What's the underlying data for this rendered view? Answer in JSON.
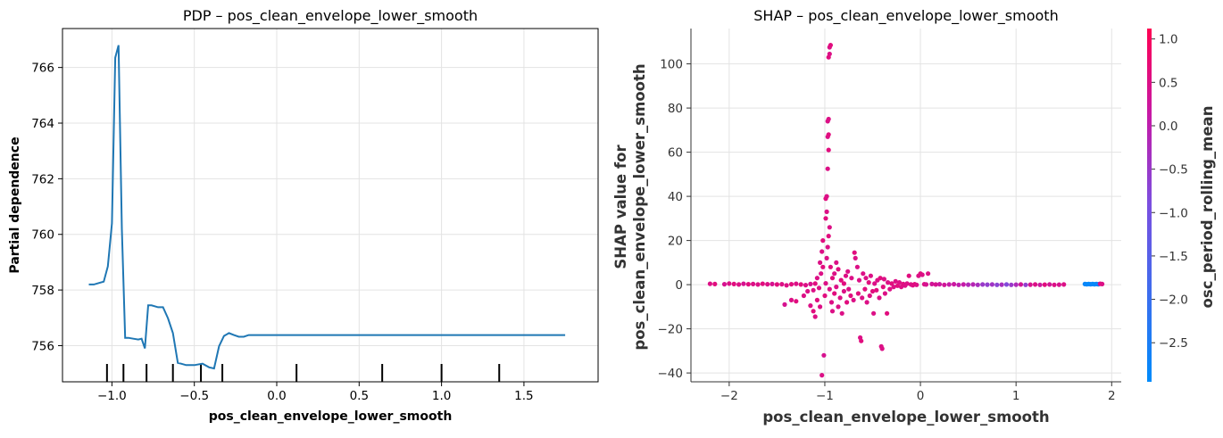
{
  "colors": {
    "pdp_line": "#1f77b4",
    "shap_low": "#008bfb",
    "shap_high": "#ff0052",
    "rug": "#000000"
  },
  "chart_data": [
    {
      "type": "line",
      "title": "PDP – pos_clean_envelope_lower_smooth",
      "xlabel": "pos_clean_envelope_lower_smooth",
      "ylabel": "Partial dependence",
      "xlim": [
        -1.3,
        1.95
      ],
      "ylim": [
        754.7,
        767.4
      ],
      "grid": true,
      "x_ticks": [
        -1.0,
        -0.5,
        0.0,
        0.5,
        1.0,
        1.5
      ],
      "x_tick_labels": [
        "−1.0",
        "−0.5",
        "0.0",
        "0.5",
        "1.0",
        "1.5"
      ],
      "y_ticks": [
        756,
        758,
        760,
        762,
        764,
        766
      ],
      "y_tick_labels": [
        "756",
        "758",
        "760",
        "762",
        "764",
        "766"
      ],
      "series": [
        {
          "x": [
            -1.14,
            -1.11,
            -1.08,
            -1.05,
            -1.025,
            -1.0,
            -0.98,
            -0.96,
            -0.94,
            -0.92,
            -0.9,
            -0.87,
            -0.84,
            -0.82,
            -0.8,
            -0.78,
            -0.76,
            -0.72,
            -0.69,
            -0.66,
            -0.63,
            -0.6,
            -0.58,
            -0.55,
            -0.5,
            -0.45,
            -0.41,
            -0.38,
            -0.35,
            -0.32,
            -0.29,
            -0.26,
            -0.23,
            -0.2,
            -0.17,
            -0.14,
            1.75
          ],
          "y": [
            758.2,
            758.2,
            758.25,
            758.3,
            758.85,
            760.4,
            766.35,
            766.8,
            760.2,
            756.28,
            756.28,
            756.25,
            756.22,
            756.25,
            755.9,
            757.45,
            757.45,
            757.38,
            757.38,
            756.98,
            756.45,
            755.38,
            755.35,
            755.3,
            755.3,
            755.35,
            755.22,
            755.18,
            755.98,
            756.35,
            756.45,
            756.38,
            756.32,
            756.32,
            756.38,
            756.38,
            756.38
          ]
        }
      ],
      "rug_x": [
        -1.03,
        -0.93,
        -0.79,
        -0.63,
        -0.46,
        -0.33,
        0.12,
        0.64,
        1.0,
        1.35
      ]
    },
    {
      "type": "scatter",
      "title": "SHAP – pos_clean_envelope_lower_smooth",
      "xlabel": "pos_clean_envelope_lower_smooth",
      "ylabel_line1": "SHAP value for",
      "ylabel_line2": "pos_clean_envelope_lower_smooth",
      "xlim": [
        -2.4,
        2.1
      ],
      "ylim": [
        -44,
        116
      ],
      "grid": true,
      "x_ticks": [
        -2,
        -1,
        0,
        1,
        2
      ],
      "x_tick_labels": [
        "−2",
        "−1",
        "0",
        "1",
        "2"
      ],
      "y_ticks": [
        -40,
        -20,
        0,
        20,
        40,
        60,
        80,
        100
      ],
      "y_tick_labels": [
        "−40",
        "−20",
        "0",
        "20",
        "40",
        "60",
        "80",
        "100"
      ],
      "colorbar": {
        "label": "osc_period_rolling_mean",
        "range": [
          -2.95,
          1.12
        ],
        "ticks": [
          1.0,
          0.5,
          0.0,
          -0.5,
          -1.0,
          -1.5,
          -2.0,
          -2.5
        ],
        "tick_labels": [
          "1.0",
          "0.5",
          "0.0",
          "−0.5",
          "−1.0",
          "−1.5",
          "−2.0",
          "−2.5"
        ]
      },
      "points": [
        [
          -2.2,
          0.4,
          0.5
        ],
        [
          -2.15,
          0.3,
          0.6
        ],
        [
          -2.05,
          0.2,
          0.4
        ],
        [
          -2.0,
          0.5,
          0.5
        ],
        [
          -1.95,
          0.3,
          0.6
        ],
        [
          -1.9,
          0.1,
          0.5
        ],
        [
          -1.85,
          0.4,
          0.4
        ],
        [
          -1.8,
          0.2,
          0.6
        ],
        [
          -1.75,
          0.3,
          0.5
        ],
        [
          -1.7,
          0.1,
          0.5
        ],
        [
          -1.65,
          0.4,
          0.6
        ],
        [
          -1.6,
          0.2,
          0.5
        ],
        [
          -1.55,
          0.3,
          0.4
        ],
        [
          -1.5,
          0.1,
          0.6
        ],
        [
          -1.45,
          0.2,
          0.5
        ],
        [
          -1.4,
          -0.3,
          0.5
        ],
        [
          -1.35,
          0.2,
          0.6
        ],
        [
          -1.3,
          0.4,
          0.5
        ],
        [
          -1.25,
          0.1,
          0.6
        ],
        [
          -1.2,
          -0.2,
          0.5
        ],
        [
          -1.15,
          0.3,
          0.4
        ],
        [
          -1.12,
          -2.5,
          0.5
        ],
        [
          -1.1,
          0.5,
          0.6
        ],
        [
          -1.08,
          3.0,
          0.5
        ],
        [
          -1.06,
          -1.5,
          0.5
        ],
        [
          -1.42,
          -9.0,
          0.4
        ],
        [
          -1.35,
          -7.0,
          0.5
        ],
        [
          -1.3,
          -7.5,
          0.6
        ],
        [
          -1.22,
          -5.0,
          0.5
        ],
        [
          -1.18,
          -3.0,
          0.5
        ],
        [
          -1.15,
          -9.5,
          0.5
        ],
        [
          -1.12,
          -12.0,
          0.6
        ],
        [
          -1.1,
          -14.5,
          0.5
        ],
        [
          -1.08,
          -7.0,
          0.6
        ],
        [
          -1.05,
          -10.0,
          0.5
        ],
        [
          -1.04,
          5.0,
          0.5
        ],
        [
          -1.02,
          8.0,
          0.6
        ],
        [
          -1.03,
          15.0,
          0.5
        ],
        [
          -1.02,
          20.0,
          0.6
        ],
        [
          -1.05,
          10.0,
          0.5
        ],
        [
          -1.01,
          -32.0,
          0.4
        ],
        [
          -1.03,
          -41.0,
          0.5
        ],
        [
          -1.0,
          -5.0,
          0.6
        ],
        [
          -0.99,
          0.6,
          0.5
        ],
        [
          -0.98,
          12.0,
          0.5
        ],
        [
          -0.99,
          30.0,
          0.6
        ],
        [
          -0.98,
          33.0,
          0.5
        ],
        [
          -0.99,
          39.0,
          0.6
        ],
        [
          -0.98,
          40.0,
          0.5
        ],
        [
          -0.97,
          52.5,
          0.5
        ],
        [
          -0.96,
          61.0,
          0.6
        ],
        [
          -0.97,
          67.0,
          0.5
        ],
        [
          -0.96,
          68.0,
          0.6
        ],
        [
          -0.97,
          74.0,
          0.5
        ],
        [
          -0.96,
          75.0,
          0.5
        ],
        [
          -0.96,
          103.0,
          0.6
        ],
        [
          -0.95,
          104.5,
          0.5
        ],
        [
          -0.95,
          107.5,
          0.5
        ],
        [
          -0.94,
          108.5,
          0.6
        ],
        [
          -0.95,
          26.0,
          0.5
        ],
        [
          -0.96,
          22.0,
          0.6
        ],
        [
          -0.97,
          17.0,
          0.5
        ],
        [
          -0.95,
          -2.0,
          0.5
        ],
        [
          -0.94,
          8.0,
          0.6
        ],
        [
          -0.93,
          -8.0,
          0.5
        ],
        [
          -0.92,
          -12.0,
          0.5
        ],
        [
          -0.92,
          3.0,
          0.6
        ],
        [
          -0.9,
          5.0,
          0.5
        ],
        [
          -0.9,
          -4.0,
          0.6
        ],
        [
          -0.88,
          10.0,
          0.5
        ],
        [
          -0.88,
          -1.0,
          0.5
        ],
        [
          -0.86,
          7.0,
          0.6
        ],
        [
          -0.86,
          -10.0,
          0.5
        ],
        [
          -0.84,
          -6.0,
          0.5
        ],
        [
          -0.83,
          2.0,
          0.6
        ],
        [
          -0.82,
          -13.0,
          0.5
        ],
        [
          -0.8,
          0.5,
          0.6
        ],
        [
          -0.8,
          -3.0,
          0.5
        ],
        [
          -0.78,
          4.0,
          0.5
        ],
        [
          -0.77,
          -8.0,
          0.6
        ],
        [
          -0.76,
          6.0,
          0.5
        ],
        [
          -0.75,
          -2.0,
          0.5
        ],
        [
          -0.73,
          -5.0,
          0.6
        ],
        [
          -0.72,
          3.0,
          0.5
        ],
        [
          -0.7,
          -7.0,
          0.5
        ],
        [
          -0.69,
          14.5,
          0.6
        ],
        [
          -0.68,
          12.0,
          0.5
        ],
        [
          -0.66,
          8.0,
          0.5
        ],
        [
          -0.65,
          -4.0,
          0.6
        ],
        [
          -0.64,
          2.0,
          0.5
        ],
        [
          -0.63,
          -24.0,
          0.5
        ],
        [
          -0.62,
          -25.5,
          0.6
        ],
        [
          -0.61,
          -6.0,
          0.5
        ],
        [
          -0.6,
          5.0,
          0.5
        ],
        [
          -0.58,
          -2.0,
          0.6
        ],
        [
          -0.57,
          3.0,
          0.5
        ],
        [
          -0.56,
          -8.0,
          0.5
        ],
        [
          -0.54,
          1.0,
          0.6
        ],
        [
          -0.53,
          -5.0,
          0.5
        ],
        [
          -0.52,
          4.0,
          0.5
        ],
        [
          -0.5,
          -3.0,
          0.6
        ],
        [
          -0.49,
          -13.0,
          0.5
        ],
        [
          -0.48,
          0.5,
          0.5
        ],
        [
          -0.46,
          -2.5,
          0.6
        ],
        [
          -0.45,
          2.0,
          0.5
        ],
        [
          -0.43,
          -6.0,
          0.5
        ],
        [
          -0.42,
          3.0,
          0.6
        ],
        [
          -0.41,
          -28.0,
          0.5
        ],
        [
          -0.4,
          -29.0,
          0.5
        ],
        [
          -0.39,
          -1.0,
          0.6
        ],
        [
          -0.38,
          2.5,
          0.5
        ],
        [
          -0.37,
          -4.0,
          0.5
        ],
        [
          -0.35,
          -13.0,
          0.6
        ],
        [
          -0.34,
          1.0,
          0.5
        ],
        [
          -0.32,
          -2.0,
          0.5
        ],
        [
          -0.3,
          0.5,
          0.6
        ],
        [
          -0.28,
          -1.0,
          0.5
        ],
        [
          -0.26,
          1.5,
          0.5
        ],
        [
          -0.24,
          -0.5,
          0.6
        ],
        [
          -0.22,
          1.0,
          0.5
        ],
        [
          -0.2,
          -1.0,
          0.5
        ],
        [
          -0.18,
          0.3,
          0.6
        ],
        [
          -0.16,
          -0.4,
          0.5
        ],
        [
          -0.14,
          0.5,
          0.5
        ],
        [
          -0.12,
          4.0,
          0.6
        ],
        [
          -0.1,
          0.1,
          0.5
        ],
        [
          -0.08,
          -0.3,
          0.5
        ],
        [
          -0.06,
          0.2,
          0.6
        ],
        [
          -0.04,
          -0.1,
          0.5
        ],
        [
          -0.02,
          4.0,
          0.5
        ],
        [
          0.0,
          5.0,
          0.6
        ],
        [
          0.02,
          4.5,
          0.5
        ],
        [
          0.04,
          0.2,
          0.5
        ],
        [
          0.06,
          0.1,
          0.4
        ],
        [
          0.08,
          5.0,
          0.5
        ],
        [
          0.12,
          0.3,
          0.3
        ],
        [
          0.16,
          0.1,
          0.4
        ],
        [
          0.2,
          0.2,
          0.2
        ],
        [
          0.25,
          -0.1,
          0.3
        ],
        [
          0.3,
          0.1,
          0.1
        ],
        [
          0.35,
          0.2,
          0.2
        ],
        [
          0.4,
          -0.1,
          0.0
        ],
        [
          0.45,
          0.1,
          0.1
        ],
        [
          0.5,
          0.0,
          -0.2
        ],
        [
          0.55,
          0.1,
          -0.1
        ],
        [
          0.6,
          -0.1,
          -0.3
        ],
        [
          0.65,
          0.1,
          -0.5
        ],
        [
          0.7,
          0.0,
          -0.6
        ],
        [
          0.75,
          0.1,
          -0.4
        ],
        [
          0.8,
          -0.1,
          -0.7
        ],
        [
          0.85,
          0.0,
          -0.3
        ],
        [
          0.9,
          0.1,
          -0.8
        ],
        [
          0.95,
          -0.1,
          -0.5
        ],
        [
          1.0,
          0.0,
          -0.2
        ],
        [
          1.05,
          0.1,
          0.3
        ],
        [
          1.1,
          -0.1,
          -0.6
        ],
        [
          1.15,
          0.0,
          0.4
        ],
        [
          1.2,
          0.1,
          0.5
        ],
        [
          1.25,
          -0.1,
          0.2
        ],
        [
          1.3,
          0.0,
          0.6
        ],
        [
          1.35,
          0.1,
          0.3
        ],
        [
          1.4,
          -0.1,
          0.5
        ],
        [
          1.45,
          0.0,
          0.4
        ],
        [
          1.5,
          0.1,
          0.5
        ],
        [
          1.72,
          0.3,
          -2.8
        ],
        [
          1.74,
          0.2,
          -2.8
        ],
        [
          1.76,
          0.3,
          -2.9
        ],
        [
          1.78,
          0.2,
          -2.8
        ],
        [
          1.8,
          0.3,
          -2.8
        ],
        [
          1.82,
          0.2,
          -2.9
        ],
        [
          1.84,
          0.3,
          -2.8
        ],
        [
          1.86,
          0.2,
          -2.7
        ],
        [
          1.88,
          0.4,
          0.6
        ],
        [
          1.9,
          0.3,
          0.5
        ]
      ]
    }
  ]
}
